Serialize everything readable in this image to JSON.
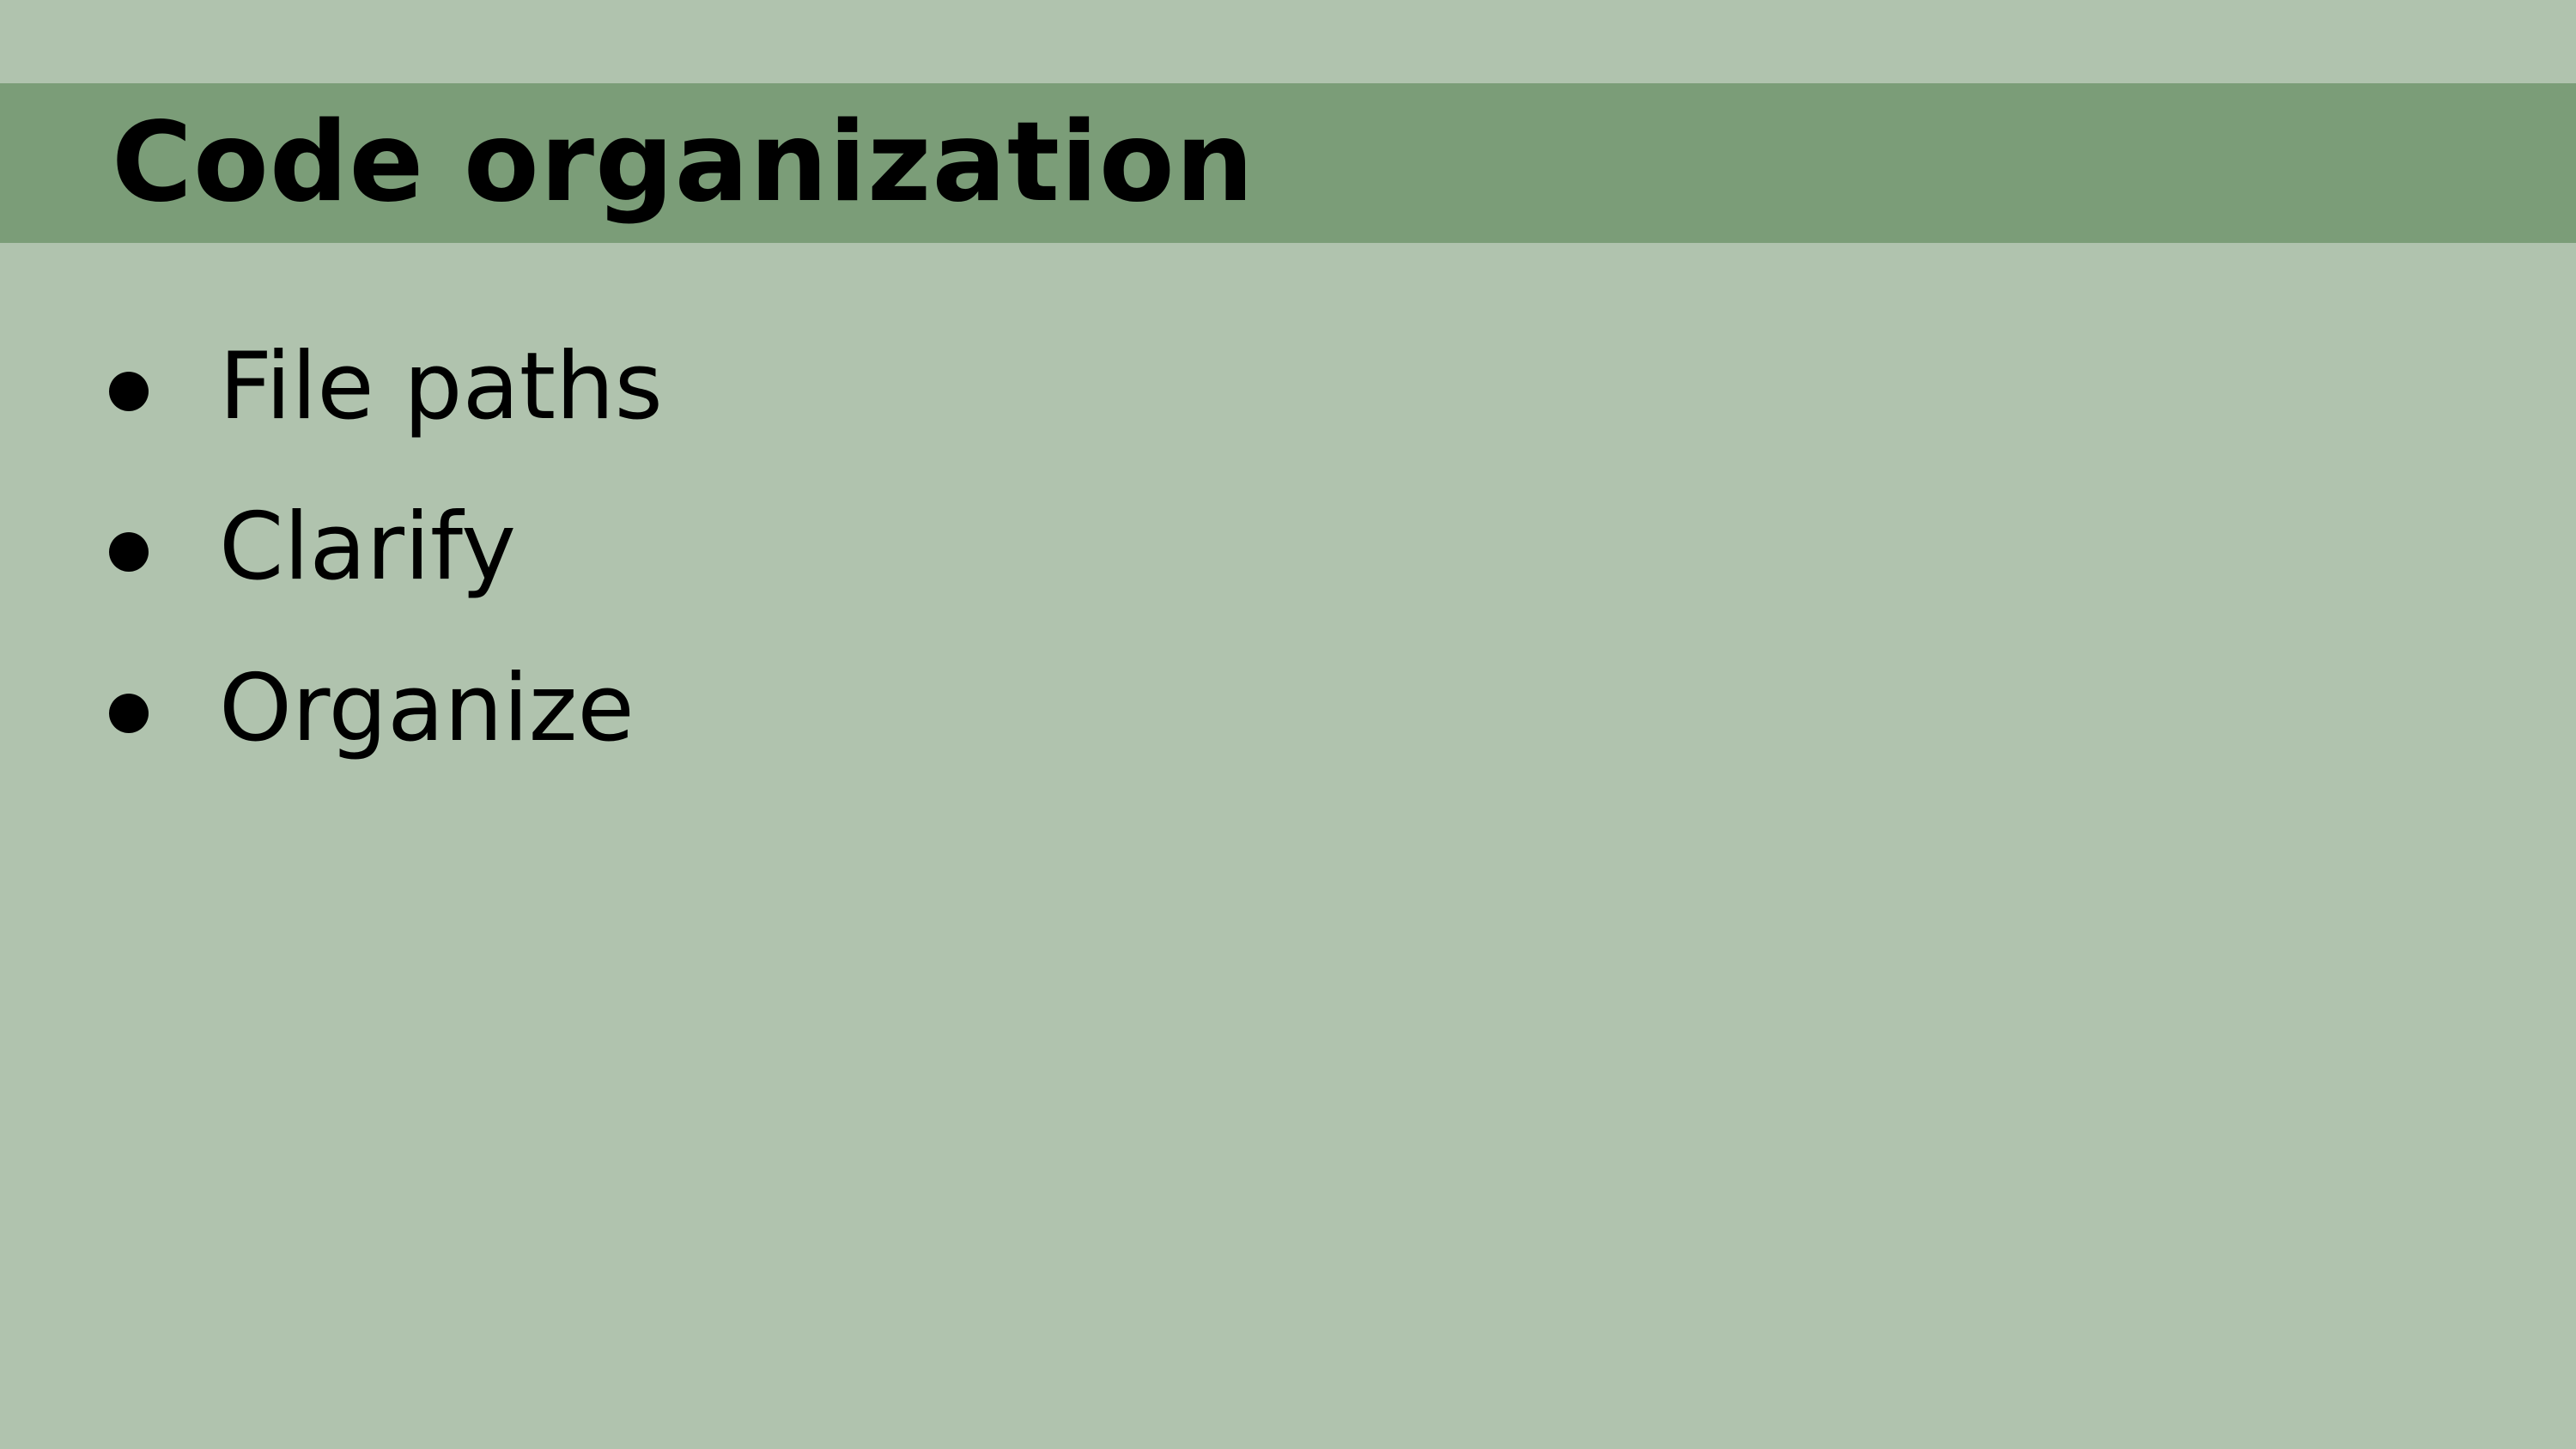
{
  "slide": {
    "title": "Code organization",
    "bullets": [
      {
        "label": "File paths"
      },
      {
        "label": "Clarify"
      },
      {
        "label": "Organize"
      }
    ]
  },
  "colors": {
    "background": "#b0c3ae",
    "title_band": "#7b9d78",
    "text": "#000000"
  }
}
